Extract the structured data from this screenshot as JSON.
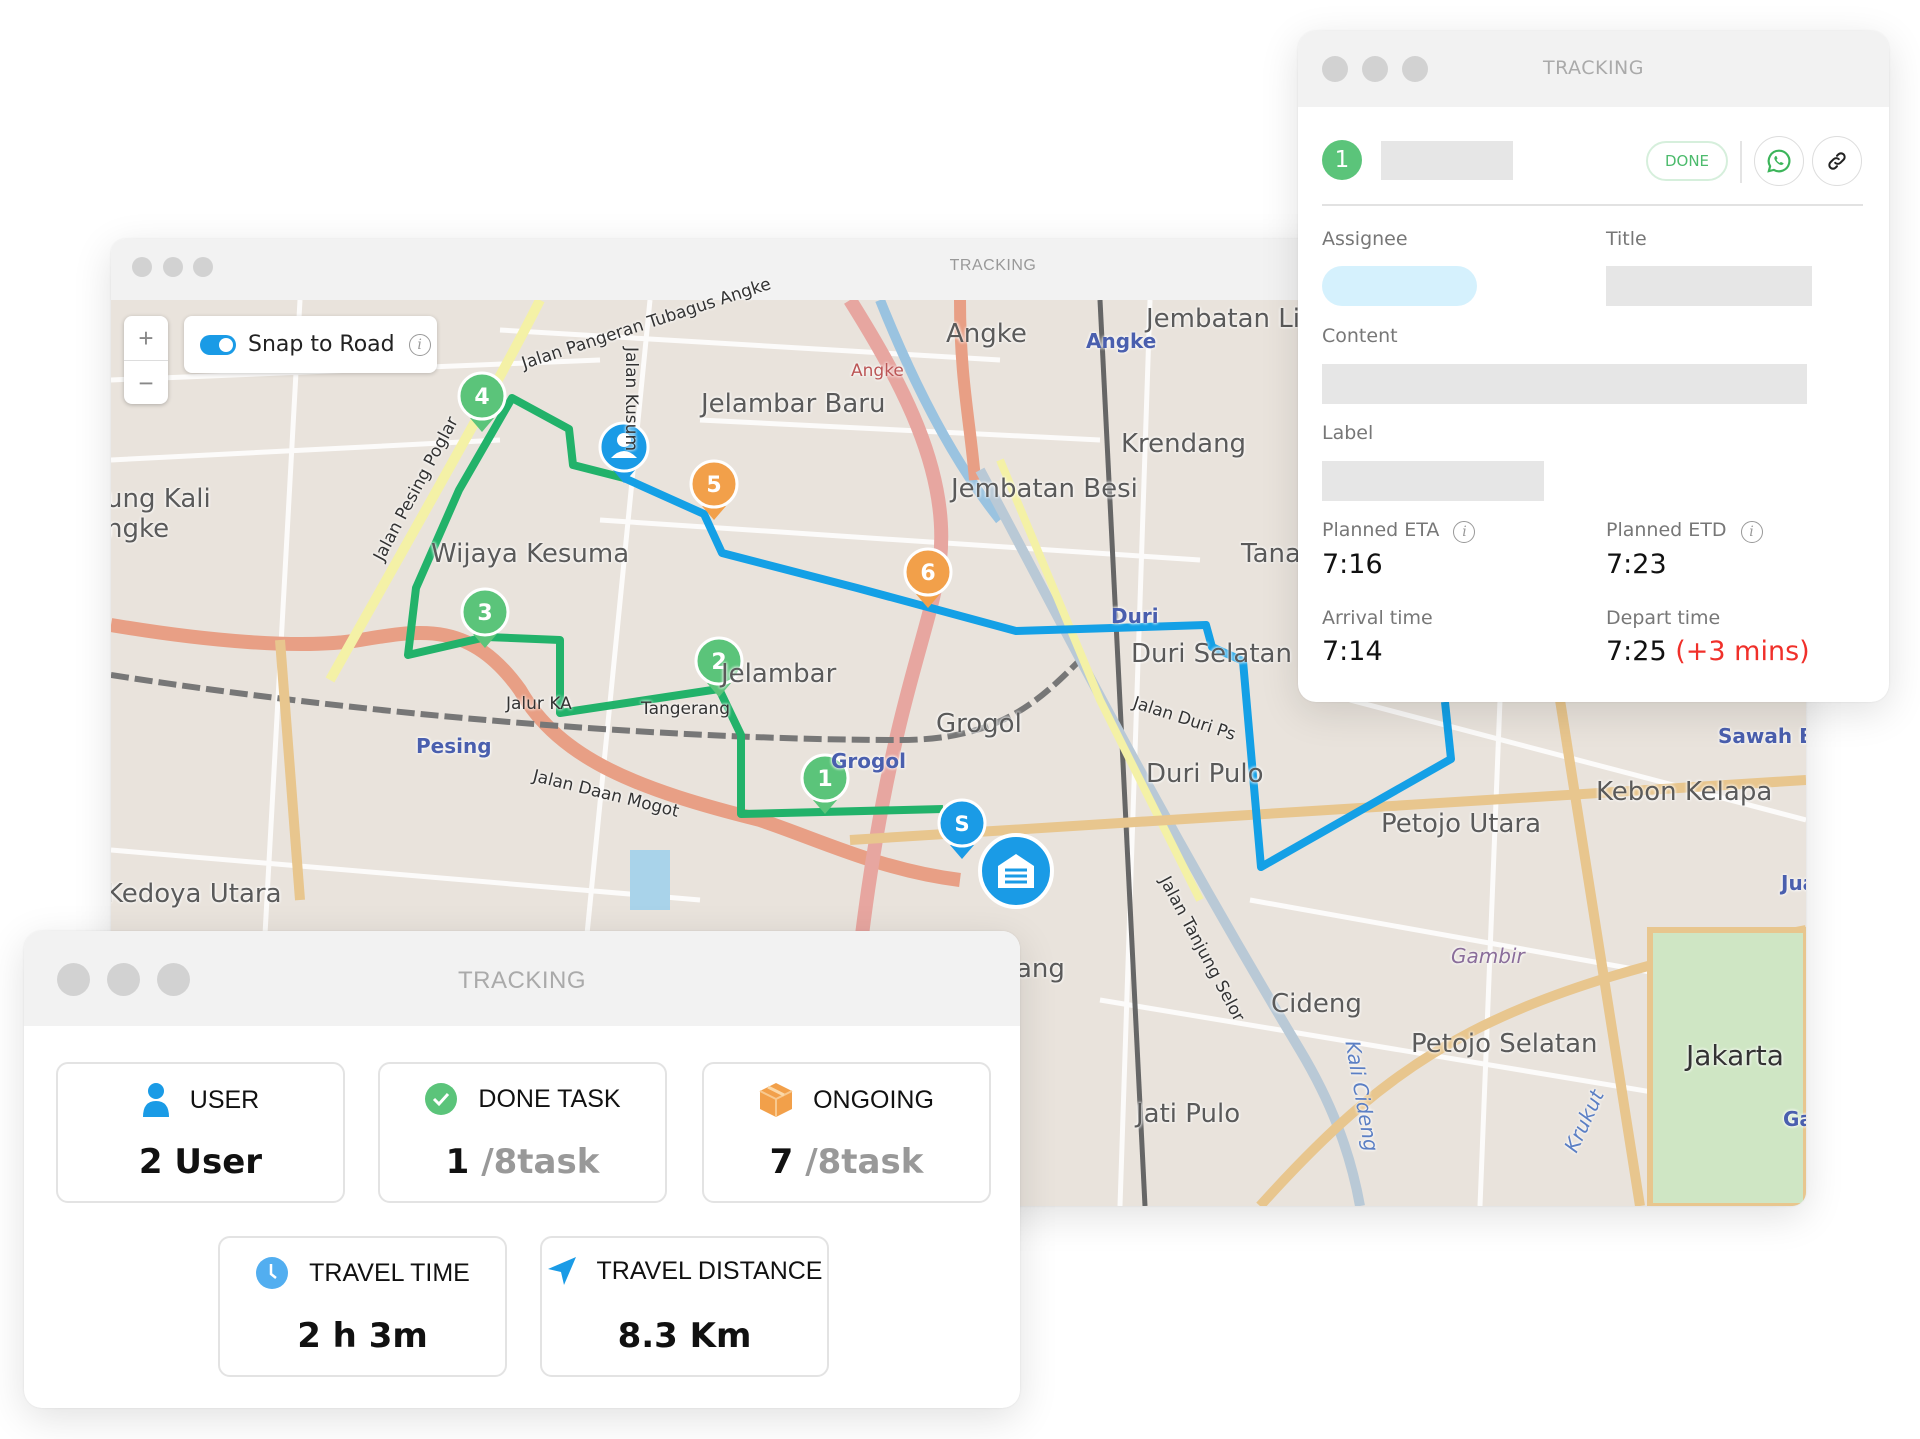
{
  "map_window": {
    "title": "TRACKING",
    "zoom_in": "+",
    "zoom_out": "−",
    "snap_to_road": {
      "label": "Snap to Road",
      "enabled": true,
      "info_icon": "info-icon"
    },
    "labels": {
      "tubagus": "Jalan Pangeran Tubagus Angke",
      "kusum": "Jalan Kusum",
      "angke": "Angke",
      "angke_small": "Angke",
      "angke_blue": "Angke",
      "jembatan_lima": "Jembatan Lima",
      "jelambar_baru": "Jelambar Baru",
      "krendang": "Krendang",
      "jembatan_besi": "Jembatan Besi",
      "ung_kali": "ung Kali",
      "ngke": "ngke",
      "wijaya_kesuma": "Wijaya Kesuma",
      "tana": "Tana",
      "duri": "Duri",
      "duri_selatan": "Duri Selatan",
      "jelambar": "Jelambar",
      "jalur_ka": "Jalur KA",
      "tangerang": "Tangerang",
      "pesing": "Pesing",
      "grogol": "Grogol",
      "grogol_blue": "Grogol",
      "daan_mogot": "Jalan Daan Mogot",
      "pesing_poglar": "Jalan Pesing Poglar",
      "jalan_duri": "Jalan Duri Ps",
      "duri_pulo": "Duri Pulo",
      "kedoya_utara": "Kedoya Utara",
      "petojo_utara": "Petojo Utara",
      "kebon_kelapa": "Kebon Kelapa",
      "sawah_besar": "Sawah Besar",
      "gambir": "Gambir",
      "cideng": "Cideng",
      "petojo_selatan": "Petojo Selatan",
      "jakarta": "Jakarta",
      "jati_pulo": "Jati Pulo",
      "kali_cideng": "Kali Cideng",
      "krukut": "Krukut",
      "tanjung_selor": "Jalan Tanjung Selor",
      "ang": "ang",
      "ju": "Jua",
      "ga": "Ga"
    },
    "markers": {
      "done_stops": [
        "1",
        "2",
        "3",
        "4"
      ],
      "pending_stops": [
        "5",
        "6"
      ],
      "start": "S",
      "user_icon": "user-icon",
      "warehouse_icon": "warehouse-icon"
    },
    "colors": {
      "done_route": "#22b26a",
      "pending_route": "#14a0e6",
      "done_marker": "#5bc47a",
      "pending_marker": "#f2a04a",
      "user_marker": "#1a9be6"
    }
  },
  "detail_panel": {
    "title": "TRACKING",
    "stop_number": "1",
    "status": "DONE",
    "whatsapp_icon": "whatsapp-icon",
    "link_icon": "link-icon",
    "assignee_label": "Assignee",
    "title_label": "Title",
    "content_label": "Content",
    "label_label": "Label",
    "planned_eta_label": "Planned ETA",
    "planned_eta": "7:16",
    "planned_etd_label": "Planned ETD",
    "planned_etd": "7:23",
    "arrival_label": "Arrival time",
    "arrival": "7:14",
    "depart_label": "Depart time",
    "depart": "7:25",
    "depart_delay": "(+3 mins)",
    "colors": {
      "done": "#5bc47a",
      "delay": "#f0302a",
      "assignee_pill": "#d5f1fd"
    }
  },
  "stats_panel": {
    "title": "TRACKING",
    "cards": {
      "user": {
        "label": "USER",
        "value": "2 User",
        "icon": "user-icon"
      },
      "done": {
        "label": "DONE TASK",
        "value": "1",
        "total": "/8task",
        "icon": "check-circle-icon"
      },
      "ongoing": {
        "label": "ONGOING",
        "value": "7",
        "total": "/8task",
        "icon": "box-icon"
      },
      "travel_time": {
        "label": "TRAVEL TIME",
        "value": "2 h 3m",
        "icon": "clock-icon"
      },
      "travel_distance": {
        "label": "TRAVEL DISTANCE",
        "value": "8.3 Km",
        "icon": "navigation-arrow-icon"
      }
    }
  }
}
